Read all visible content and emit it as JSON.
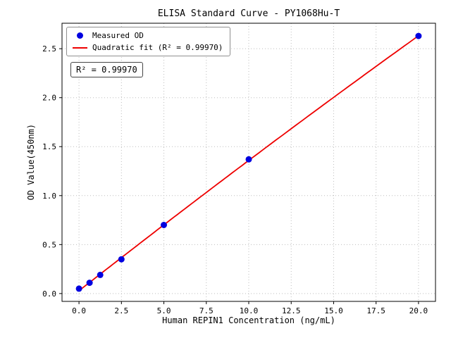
{
  "figure": {
    "title": "ELISA Standard Curve - PY1068Hu-T",
    "xlabel": "Human REPIN1 Concentration (ng/mL)",
    "ylabel": "OD Value(450nm)",
    "annotation": "R² = 0.99970",
    "legend": {
      "measured_label": "Measured OD",
      "fit_label": "Quadratic fit (R² = 0.99970)"
    },
    "colors": {
      "points": "#0000e0",
      "fit_line": "#ee0000",
      "grid": "#bdbdbd"
    }
  },
  "chart_data": {
    "type": "scatter",
    "title": "ELISA Standard Curve - PY1068Hu-T",
    "xlabel": "Human REPIN1 Concentration (ng/mL)",
    "ylabel": "OD Value(450nm)",
    "series": [
      {
        "name": "Measured OD",
        "x": [
          0,
          0.625,
          1.25,
          2.5,
          5,
          10,
          20
        ],
        "y": [
          0.05,
          0.11,
          0.19,
          0.35,
          0.7,
          1.37,
          2.63
        ]
      },
      {
        "name": "Quadratic fit (R² = 0.99970)",
        "fit_type": "quadratic",
        "r_squared": 0.9997
      }
    ],
    "x": [
      0,
      0.625,
      1.25,
      2.5,
      5,
      10,
      20
    ],
    "y": [
      0.05,
      0.11,
      0.19,
      0.35,
      0.7,
      1.37,
      2.63
    ],
    "xticks": [
      0,
      2.5,
      5,
      7.5,
      10,
      12.5,
      15,
      17.5,
      20
    ],
    "xtick_labels": [
      "0.0",
      "2.5",
      "5.0",
      "7.5",
      "10.0",
      "12.5",
      "15.0",
      "17.5",
      "20.0"
    ],
    "yticks": [
      0,
      0.5,
      1,
      1.5,
      2,
      2.5
    ],
    "ytick_labels": [
      "0.0",
      "0.5",
      "1.0",
      "1.5",
      "2.0",
      "2.5"
    ],
    "xlim": [
      -1,
      21
    ],
    "ylim": [
      -0.08,
      2.76
    ],
    "grid": true,
    "legend_position": "upper-left",
    "annotation": "R² = 0.99970"
  }
}
